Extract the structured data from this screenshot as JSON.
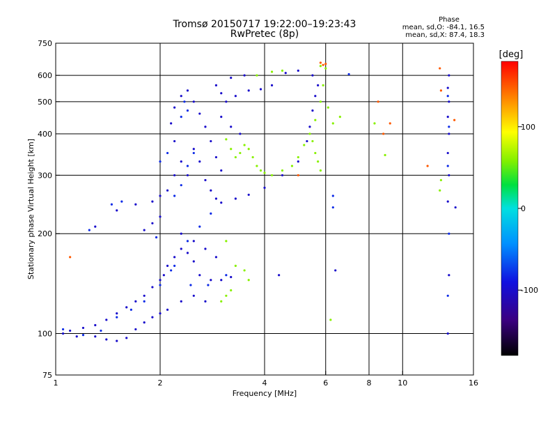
{
  "chart_data": {
    "type": "scatter",
    "title": "Tromsø 20150717 19:22:00–19:23:43",
    "subtitle": "RwPretec (8p)",
    "stats_header": "Phase",
    "stats_o": "mean, sd,O: -84.1, 16.5",
    "stats_x": "mean, sd,X:  87.4, 18.3",
    "xlabel": "Frequency [MHz]",
    "ylabel": "Stationary phase Virtual Height [km]",
    "x_scale": "log",
    "y_scale": "log",
    "xlim": [
      1,
      16
    ],
    "ylim": [
      75,
      750
    ],
    "x_ticks": [
      1,
      2,
      4,
      6,
      8,
      10,
      16
    ],
    "x_tick_labels": [
      "1",
      "2",
      "4",
      "6",
      "8",
      "10",
      "16"
    ],
    "y_ticks": [
      75,
      100,
      200,
      300,
      400,
      500,
      600,
      750
    ],
    "y_tick_labels": [
      "75",
      "100",
      "200",
      "300",
      "400",
      "500",
      "600",
      "750"
    ],
    "grid_x": [
      2,
      4,
      6,
      8,
      10
    ],
    "grid_y": [
      100,
      200,
      300,
      400,
      500,
      600
    ],
    "colorbar": {
      "label": "[deg]",
      "range": [
        -180,
        180
      ],
      "ticks": [
        100,
        0,
        -100
      ],
      "tick_labels": [
        "100",
        "0",
        "-100"
      ]
    },
    "series": [
      {
        "phase": -100,
        "points": [
          [
            1.05,
            100
          ],
          [
            1.1,
            102
          ],
          [
            1.15,
            98
          ],
          [
            1.2,
            104
          ],
          [
            1.3,
            106
          ],
          [
            1.4,
            110
          ],
          [
            1.5,
            115
          ],
          [
            1.6,
            120
          ],
          [
            1.7,
            125
          ],
          [
            1.8,
            130
          ],
          [
            1.9,
            138
          ],
          [
            2.0,
            145
          ],
          [
            2.05,
            150
          ],
          [
            2.1,
            160
          ],
          [
            2.2,
            170
          ],
          [
            2.3,
            180
          ],
          [
            2.4,
            175
          ],
          [
            2.5,
            165
          ],
          [
            2.6,
            150
          ],
          [
            2.8,
            145
          ],
          [
            3.0,
            145
          ],
          [
            3.2,
            148
          ],
          [
            1.3,
            98
          ],
          [
            1.4,
            96
          ],
          [
            1.5,
            95
          ],
          [
            1.6,
            97
          ],
          [
            1.7,
            103
          ],
          [
            1.8,
            108
          ],
          [
            1.9,
            112
          ],
          [
            2.0,
            115
          ],
          [
            2.1,
            118
          ],
          [
            2.3,
            125
          ],
          [
            2.5,
            130
          ],
          [
            2.7,
            125
          ],
          [
            1.3,
            210
          ],
          [
            1.5,
            235
          ],
          [
            1.7,
            245
          ],
          [
            1.9,
            250
          ],
          [
            2.0,
            260
          ],
          [
            2.1,
            270
          ],
          [
            2.2,
            300
          ],
          [
            2.3,
            330
          ],
          [
            2.2,
            380
          ],
          [
            2.15,
            430
          ],
          [
            2.2,
            480
          ],
          [
            2.3,
            520
          ],
          [
            2.4,
            540
          ],
          [
            2.5,
            500
          ],
          [
            2.6,
            460
          ],
          [
            2.7,
            420
          ],
          [
            2.8,
            380
          ],
          [
            2.9,
            340
          ],
          [
            3.0,
            310
          ],
          [
            2.6,
            330
          ],
          [
            2.5,
            360
          ],
          [
            2.4,
            300
          ],
          [
            2.7,
            290
          ],
          [
            2.8,
            270
          ],
          [
            2.9,
            255
          ],
          [
            3.0,
            248
          ],
          [
            3.3,
            255
          ],
          [
            3.6,
            262
          ],
          [
            4.0,
            275
          ],
          [
            4.5,
            300
          ],
          [
            5.0,
            330
          ],
          [
            5.3,
            380
          ],
          [
            5.4,
            420
          ],
          [
            5.5,
            470
          ],
          [
            5.6,
            520
          ],
          [
            5.7,
            560
          ],
          [
            5.5,
            600
          ],
          [
            5.0,
            620
          ],
          [
            4.6,
            610
          ],
          [
            4.2,
            560
          ],
          [
            3.9,
            545
          ],
          [
            3.6,
            540
          ],
          [
            3.3,
            520
          ],
          [
            3.1,
            500
          ],
          [
            3.0,
            530
          ],
          [
            2.9,
            560
          ],
          [
            3.2,
            590
          ],
          [
            3.5,
            600
          ],
          [
            3.0,
            450
          ],
          [
            3.2,
            420
          ],
          [
            3.4,
            400
          ],
          [
            1.8,
            205
          ],
          [
            1.9,
            215
          ],
          [
            2.0,
            225
          ],
          [
            2.3,
            200
          ],
          [
            2.5,
            190
          ],
          [
            2.7,
            180
          ],
          [
            2.9,
            170
          ],
          [
            4.4,
            150
          ],
          [
            6.4,
            155
          ],
          [
            13.5,
            100
          ],
          [
            13.6,
            150
          ],
          [
            13.5,
            250
          ],
          [
            13.6,
            300
          ],
          [
            13.5,
            350
          ],
          [
            13.6,
            400
          ],
          [
            13.5,
            450
          ],
          [
            13.6,
            500
          ],
          [
            13.5,
            550
          ],
          [
            13.6,
            600
          ],
          [
            14.2,
            240
          ]
        ]
      },
      {
        "phase": -80,
        "points": [
          [
            1.05,
            103
          ],
          [
            1.2,
            99
          ],
          [
            1.35,
            102
          ],
          [
            1.5,
            112
          ],
          [
            1.65,
            118
          ],
          [
            1.8,
            125
          ],
          [
            2.0,
            140
          ],
          [
            2.2,
            160
          ],
          [
            2.4,
            190
          ],
          [
            2.6,
            210
          ],
          [
            2.8,
            230
          ],
          [
            2.2,
            260
          ],
          [
            2.3,
            280
          ],
          [
            2.4,
            320
          ],
          [
            2.5,
            350
          ],
          [
            2.3,
            450
          ],
          [
            2.4,
            470
          ],
          [
            2.1,
            350
          ],
          [
            2.0,
            330
          ],
          [
            2.35,
            500
          ],
          [
            1.45,
            245
          ],
          [
            1.55,
            250
          ],
          [
            1.25,
            205
          ],
          [
            1.95,
            195
          ],
          [
            2.15,
            155
          ],
          [
            2.45,
            140
          ],
          [
            2.75,
            140
          ],
          [
            3.1,
            150
          ],
          [
            13.5,
            130
          ],
          [
            13.6,
            200
          ],
          [
            13.5,
            320
          ],
          [
            13.6,
            420
          ],
          [
            13.5,
            520
          ],
          [
            6.3,
            240
          ],
          [
            6.3,
            260
          ],
          [
            7.0,
            605
          ]
        ]
      },
      {
        "phase": 60,
        "points": [
          [
            3.1,
            385
          ],
          [
            3.2,
            360
          ],
          [
            3.3,
            340
          ],
          [
            3.4,
            350
          ],
          [
            3.5,
            370
          ],
          [
            3.6,
            360
          ],
          [
            3.7,
            340
          ],
          [
            3.8,
            320
          ],
          [
            3.9,
            310
          ],
          [
            4.0,
            305
          ],
          [
            4.2,
            300
          ],
          [
            4.5,
            310
          ],
          [
            4.8,
            320
          ],
          [
            5.0,
            340
          ],
          [
            5.2,
            370
          ],
          [
            5.4,
            400
          ],
          [
            5.5,
            380
          ],
          [
            5.6,
            350
          ],
          [
            5.7,
            330
          ],
          [
            5.8,
            310
          ],
          [
            5.6,
            440
          ],
          [
            5.8,
            500
          ],
          [
            5.9,
            560
          ],
          [
            6.0,
            630
          ],
          [
            5.8,
            640
          ],
          [
            4.5,
            620
          ],
          [
            4.2,
            615
          ],
          [
            3.8,
            600
          ],
          [
            3.1,
            190
          ],
          [
            3.3,
            160
          ],
          [
            3.5,
            155
          ],
          [
            3.6,
            145
          ],
          [
            3.2,
            135
          ],
          [
            3.0,
            125
          ],
          [
            3.1,
            130
          ],
          [
            6.1,
            480
          ],
          [
            6.3,
            430
          ],
          [
            6.6,
            450
          ],
          [
            6.2,
            110
          ],
          [
            8.3,
            430
          ],
          [
            8.9,
            345
          ],
          [
            12.8,
            270
          ],
          [
            12.9,
            290
          ]
        ]
      },
      {
        "phase": 150,
        "points": [
          [
            6.0,
            650
          ],
          [
            5.8,
            655
          ],
          [
            5.9,
            645
          ],
          [
            8.5,
            500
          ],
          [
            9.2,
            430
          ],
          [
            11.8,
            320
          ],
          [
            12.8,
            630
          ],
          [
            12.9,
            540
          ],
          [
            14.1,
            440
          ],
          [
            1.1,
            170
          ],
          [
            5.0,
            300
          ],
          [
            8.8,
            400
          ]
        ]
      }
    ]
  }
}
